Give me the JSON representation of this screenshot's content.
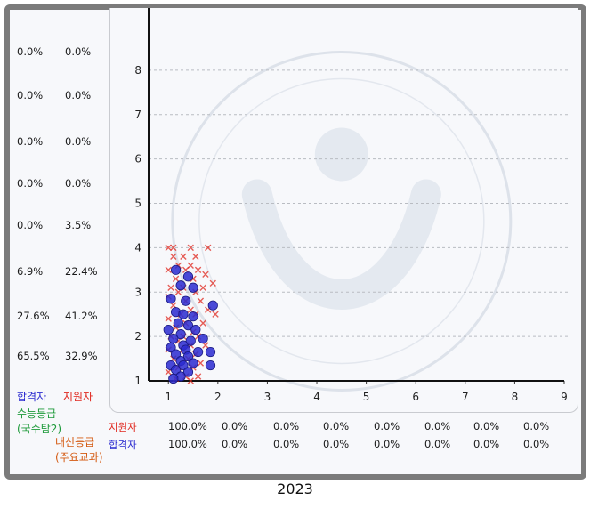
{
  "left_rows": [
    {
      "pass": "0.0%",
      "apply": "0.0%"
    },
    {
      "pass": "0.0%",
      "apply": "0.0%"
    },
    {
      "pass": "0.0%",
      "apply": "0.0%"
    },
    {
      "pass": "0.0%",
      "apply": "0.0%"
    },
    {
      "pass": "0.0%",
      "apply": "3.5%"
    },
    {
      "pass": "6.9%",
      "apply": "22.4%"
    },
    {
      "pass": "27.6%",
      "apply": "41.2%"
    },
    {
      "pass": "65.5%",
      "apply": "32.9%"
    }
  ],
  "legend": {
    "pass": "합격자",
    "apply": "지원자"
  },
  "y_axis_name": "수능등급\n(국수탐2)",
  "x_axis_name": "내신등급\n(주요교과)",
  "bottom_rows": {
    "apply": {
      "label": "지원자",
      "values": [
        "100.0%",
        "0.0%",
        "0.0%",
        "0.0%",
        "0.0%",
        "0.0%",
        "0.0%",
        "0.0%"
      ]
    },
    "pass": {
      "label": "합격자",
      "values": [
        "100.0%",
        "0.0%",
        "0.0%",
        "0.0%",
        "0.0%",
        "0.0%",
        "0.0%",
        "0.0%"
      ]
    }
  },
  "year": "2023",
  "colors": {
    "pass": "#2a2ad0",
    "apply": "#e0281f",
    "frame": "#7b7b7b",
    "suneung": "#1d9a3a",
    "naesin": "#d45a12"
  },
  "chart_data": {
    "type": "scatter",
    "xlim": [
      0.6,
      9
    ],
    "ylim": [
      1,
      9
    ],
    "x_ticks": [
      "1",
      "2",
      "3",
      "4",
      "5",
      "6",
      "7",
      "8",
      "9"
    ],
    "y_ticks": [
      "1",
      "2",
      "3",
      "4",
      "5",
      "6",
      "7",
      "8"
    ],
    "grid": "horizontal dashed",
    "series": [
      {
        "name": "지원자",
        "marker": "x",
        "color": "#e0281f",
        "points": [
          [
            1.0,
            4.0
          ],
          [
            1.1,
            4.0
          ],
          [
            1.45,
            4.0
          ],
          [
            1.8,
            4.0
          ],
          [
            1.1,
            3.8
          ],
          [
            1.3,
            3.8
          ],
          [
            1.55,
            3.8
          ],
          [
            1.2,
            3.6
          ],
          [
            1.45,
            3.6
          ],
          [
            1.0,
            3.5
          ],
          [
            1.35,
            3.5
          ],
          [
            1.6,
            3.5
          ],
          [
            1.75,
            3.4
          ],
          [
            1.15,
            3.3
          ],
          [
            1.5,
            3.3
          ],
          [
            1.9,
            3.2
          ],
          [
            1.05,
            3.1
          ],
          [
            1.3,
            3.1
          ],
          [
            1.7,
            3.1
          ],
          [
            1.2,
            3.0
          ],
          [
            1.55,
            3.0
          ],
          [
            1.0,
            2.9
          ],
          [
            1.35,
            2.8
          ],
          [
            1.65,
            2.8
          ],
          [
            1.1,
            2.7
          ],
          [
            1.45,
            2.6
          ],
          [
            1.8,
            2.6
          ],
          [
            1.25,
            2.5
          ],
          [
            1.55,
            2.5
          ],
          [
            1.95,
            2.5
          ],
          [
            1.0,
            2.4
          ],
          [
            1.35,
            2.3
          ],
          [
            1.7,
            2.3
          ],
          [
            1.15,
            2.2
          ],
          [
            1.5,
            2.1
          ],
          [
            1.05,
            2.0
          ],
          [
            1.3,
            2.0
          ],
          [
            1.6,
            2.0
          ],
          [
            1.2,
            1.9
          ],
          [
            1.45,
            1.8
          ],
          [
            1.75,
            1.8
          ],
          [
            1.0,
            1.7
          ],
          [
            1.3,
            1.7
          ],
          [
            1.55,
            1.6
          ],
          [
            1.1,
            1.5
          ],
          [
            1.4,
            1.5
          ],
          [
            1.65,
            1.4
          ],
          [
            1.2,
            1.3
          ],
          [
            1.5,
            1.3
          ],
          [
            1.0,
            1.2
          ],
          [
            1.35,
            1.1
          ],
          [
            1.6,
            1.1
          ],
          [
            1.15,
            1.05
          ],
          [
            1.45,
            1.0
          ]
        ]
      },
      {
        "name": "합격자",
        "marker": "circle",
        "color": "#2a2ad0",
        "points": [
          [
            1.15,
            3.5
          ],
          [
            1.4,
            3.35
          ],
          [
            1.25,
            3.15
          ],
          [
            1.5,
            3.1
          ],
          [
            1.05,
            2.85
          ],
          [
            1.35,
            2.8
          ],
          [
            1.9,
            2.7
          ],
          [
            1.15,
            2.55
          ],
          [
            1.3,
            2.5
          ],
          [
            1.5,
            2.45
          ],
          [
            1.2,
            2.3
          ],
          [
            1.4,
            2.25
          ],
          [
            1.0,
            2.15
          ],
          [
            1.55,
            2.15
          ],
          [
            1.25,
            2.05
          ],
          [
            1.1,
            1.95
          ],
          [
            1.45,
            1.9
          ],
          [
            1.7,
            1.95
          ],
          [
            1.3,
            1.8
          ],
          [
            1.05,
            1.75
          ],
          [
            1.35,
            1.7
          ],
          [
            1.6,
            1.65
          ],
          [
            1.15,
            1.6
          ],
          [
            1.4,
            1.55
          ],
          [
            1.85,
            1.65
          ],
          [
            1.25,
            1.45
          ],
          [
            1.5,
            1.4
          ],
          [
            1.05,
            1.35
          ],
          [
            1.3,
            1.35
          ],
          [
            1.85,
            1.35
          ],
          [
            1.15,
            1.25
          ],
          [
            1.4,
            1.2
          ],
          [
            1.25,
            1.1
          ],
          [
            1.1,
            1.05
          ]
        ]
      }
    ]
  }
}
